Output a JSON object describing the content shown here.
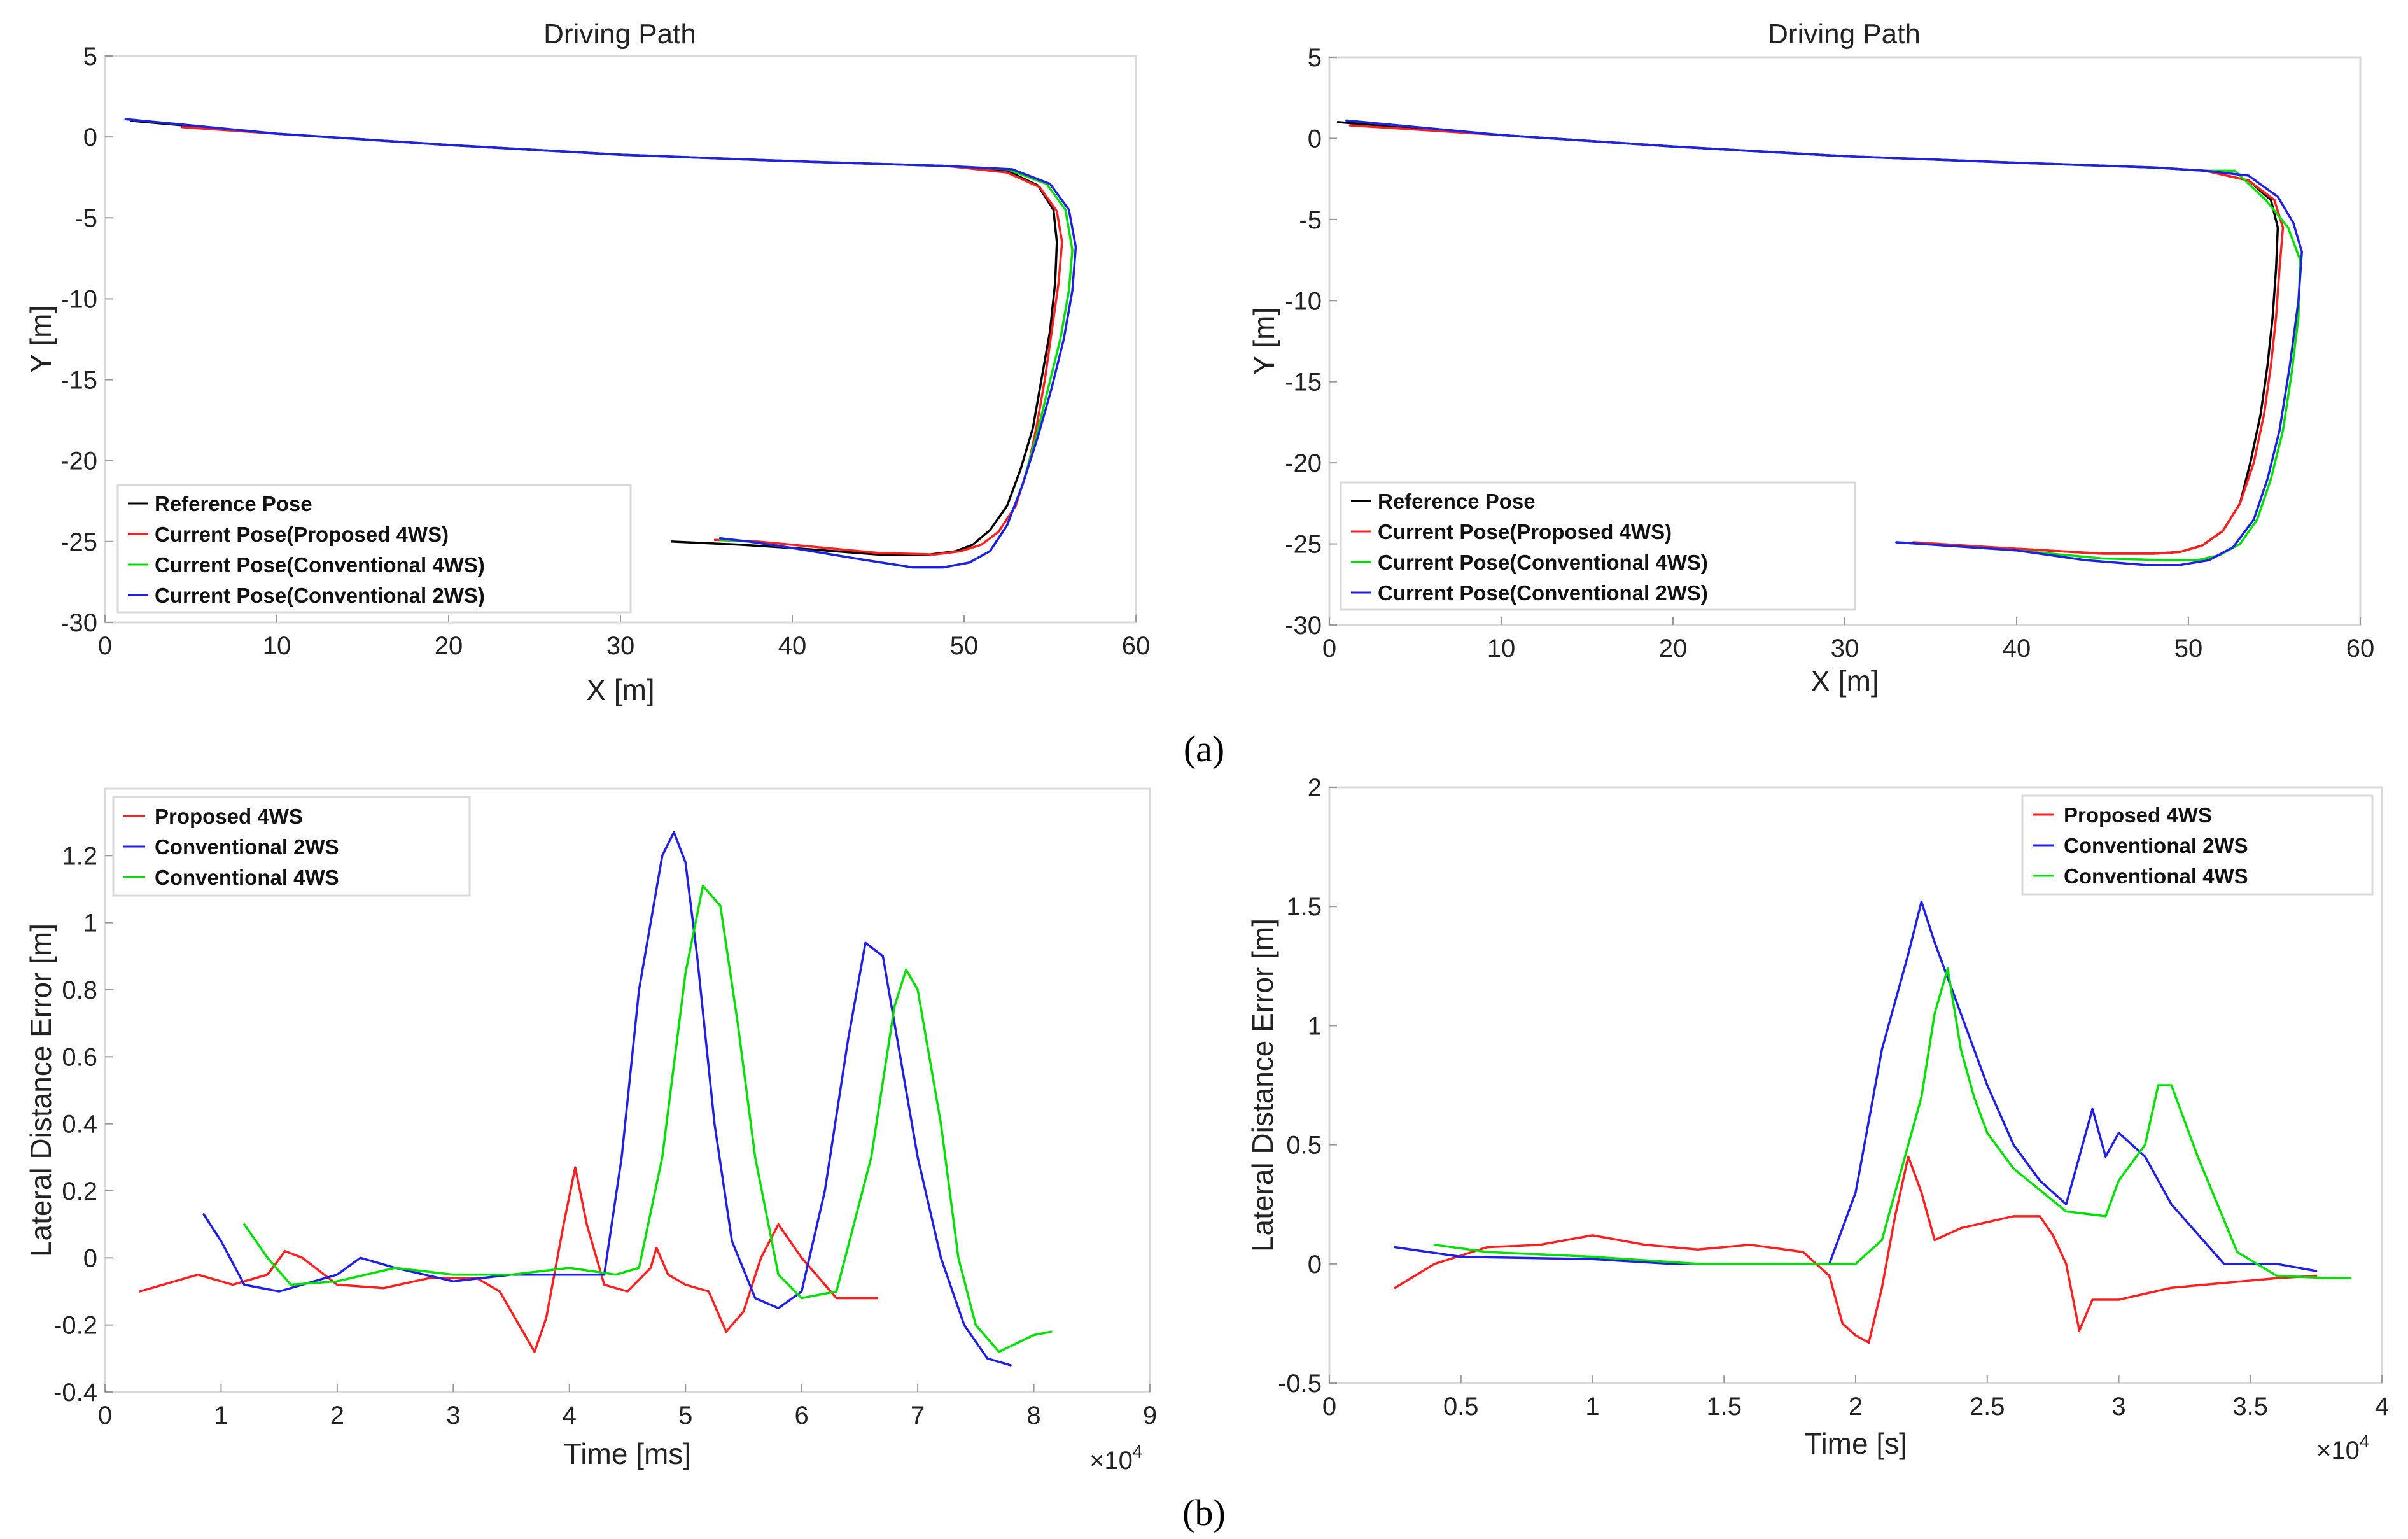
{
  "figure": {
    "label_a": "(a)",
    "label_b": "(b)"
  },
  "colors": {
    "reference": "#000000",
    "proposed": "#ff1f1f",
    "conv4ws": "#00e000",
    "conv2ws": "#1f1fe6"
  },
  "chart_data": [
    {
      "id": "path_left",
      "type": "line",
      "title": "Driving Path",
      "xlabel": "X [m]",
      "ylabel": "Y [m]",
      "xlim": [
        0,
        60
      ],
      "ylim": [
        -30,
        5
      ],
      "xticks": [
        0,
        10,
        20,
        30,
        40,
        50,
        60
      ],
      "yticks": [
        5,
        0,
        -5,
        -10,
        -15,
        -20,
        -25,
        -30
      ],
      "legend_position": "bottom-left",
      "series": [
        {
          "name": "Reference Pose",
          "color": "reference",
          "x": [
            1.5,
            10,
            20,
            30,
            40,
            49,
            52.5,
            54.3,
            55.2,
            55.4,
            55.3,
            55.0,
            54.5,
            54.0,
            53.3,
            52.5,
            51.5,
            50.5,
            49.5,
            48.0,
            45.0,
            40.0,
            37.0,
            33.0
          ],
          "y": [
            1.0,
            0.2,
            -0.5,
            -1.1,
            -1.5,
            -1.8,
            -2.1,
            -3.0,
            -4.5,
            -6.5,
            -9,
            -12,
            -15,
            -18,
            -20.5,
            -22.8,
            -24.3,
            -25.2,
            -25.6,
            -25.8,
            -25.8,
            -25.4,
            -25.2,
            -25.0
          ]
        },
        {
          "name": "Current Pose(Proposed 4WS)",
          "color": "proposed",
          "x": [
            4.5,
            10,
            20,
            30,
            40,
            49,
            52.5,
            54.4,
            55.4,
            55.7,
            55.5,
            55.1,
            54.7,
            54.2,
            53.7,
            53.0,
            52.0,
            51.0,
            49.8,
            48.3,
            45.0,
            41.0,
            38.0,
            35.5
          ],
          "y": [
            0.6,
            0.2,
            -0.5,
            -1.1,
            -1.5,
            -1.8,
            -2.2,
            -3.1,
            -4.6,
            -6.5,
            -9,
            -12,
            -15,
            -18,
            -20.5,
            -22.8,
            -24.4,
            -25.2,
            -25.6,
            -25.8,
            -25.7,
            -25.3,
            -25.0,
            -24.9
          ]
        },
        {
          "name": "Current Pose(Conventional 4WS)",
          "color": "conv4ws",
          "x": [
            1.2,
            10,
            20,
            30,
            40,
            49,
            52.5,
            54.8,
            55.9,
            56.3,
            56.1,
            55.6,
            54.9,
            54.2,
            53.4,
            52.5,
            51.5,
            50.3,
            48.8,
            47.0,
            44.0,
            40.0,
            37.5,
            35.8
          ],
          "y": [
            1.1,
            0.2,
            -0.5,
            -1.1,
            -1.5,
            -1.8,
            -2.0,
            -2.9,
            -4.5,
            -7.0,
            -9.5,
            -12.5,
            -15.5,
            -18.5,
            -21.5,
            -24.0,
            -25.6,
            -26.3,
            -26.6,
            -26.6,
            -26.1,
            -25.4,
            -25.0,
            -24.9
          ]
        },
        {
          "name": "Current Pose(Conventional 2WS)",
          "color": "conv2ws",
          "x": [
            1.2,
            10,
            20,
            30,
            40,
            49,
            52.8,
            55.0,
            56.1,
            56.5,
            56.3,
            55.8,
            55.1,
            54.3,
            53.4,
            52.5,
            51.5,
            50.3,
            48.8,
            47.0,
            44.0,
            40.0,
            37.5,
            35.8
          ],
          "y": [
            1.1,
            0.2,
            -0.5,
            -1.1,
            -1.5,
            -1.8,
            -2.0,
            -2.9,
            -4.5,
            -6.8,
            -9.5,
            -12.5,
            -15.5,
            -18.5,
            -21.5,
            -24.0,
            -25.6,
            -26.3,
            -26.6,
            -26.6,
            -26.1,
            -25.4,
            -25.0,
            -24.8
          ]
        }
      ]
    },
    {
      "id": "path_right",
      "type": "line",
      "title": "Driving Path",
      "xlabel": "X [m]",
      "ylabel": "Y [m]",
      "xlim": [
        0,
        60
      ],
      "ylim": [
        -30,
        5
      ],
      "xticks": [
        0,
        10,
        20,
        30,
        40,
        50,
        60
      ],
      "yticks": [
        5,
        0,
        -5,
        -10,
        -15,
        -20,
        -25,
        -30
      ],
      "legend_position": "bottom-left",
      "series": [
        {
          "name": "Reference Pose",
          "color": "reference",
          "x": [
            0.5,
            10,
            20,
            30,
            40,
            48,
            51,
            53.5,
            54.8,
            55.2,
            55.1,
            54.9,
            54.6,
            54.2,
            53.6,
            53.0,
            52.0,
            50.8,
            49.5,
            48.0,
            45.0,
            40.0,
            33.0
          ],
          "y": [
            1.0,
            0.2,
            -0.5,
            -1.1,
            -1.5,
            -1.8,
            -2.0,
            -2.6,
            -3.8,
            -5.5,
            -8,
            -11,
            -14,
            -17,
            -20,
            -22.5,
            -24.2,
            -25.1,
            -25.5,
            -25.6,
            -25.6,
            -25.3,
            -24.9
          ]
        },
        {
          "name": "Current Pose(Proposed 4WS)",
          "color": "proposed",
          "x": [
            1.2,
            10,
            20,
            30,
            40,
            48,
            51,
            53.5,
            55.0,
            55.5,
            55.3,
            55.1,
            54.8,
            54.4,
            53.8,
            53.0,
            52.0,
            50.8,
            49.5,
            48.0,
            45.0,
            40.0,
            34.0
          ],
          "y": [
            0.8,
            0.2,
            -0.5,
            -1.1,
            -1.5,
            -1.8,
            -2.0,
            -2.6,
            -3.8,
            -5.5,
            -8,
            -11,
            -14,
            -17,
            -20,
            -22.5,
            -24.2,
            -25.1,
            -25.5,
            -25.6,
            -25.6,
            -25.3,
            -24.9
          ]
        },
        {
          "name": "Current Pose(Conventional 4WS)",
          "color": "conv4ws",
          "x": [
            1.0,
            10,
            20,
            30,
            40,
            48,
            51,
            52.7,
            54.5,
            55.8,
            56.5,
            56.4,
            56.0,
            55.5,
            54.8,
            54.0,
            53.0,
            51.8,
            50.5,
            48.8,
            45.0,
            40.0,
            33.0
          ],
          "y": [
            1.1,
            0.2,
            -0.5,
            -1.1,
            -1.5,
            -1.8,
            -2.0,
            -2.0,
            -3.8,
            -5.5,
            -7.5,
            -11,
            -14.5,
            -18,
            -21,
            -23.5,
            -25.0,
            -25.7,
            -26.0,
            -26.0,
            -25.9,
            -25.4,
            -24.9
          ]
        },
        {
          "name": "Current Pose(Conventional 2WS)",
          "color": "conv2ws",
          "x": [
            1.0,
            10,
            20,
            30,
            40,
            48,
            51,
            53.5,
            55.2,
            56.1,
            56.6,
            56.4,
            55.9,
            55.3,
            54.6,
            53.8,
            52.6,
            51.2,
            49.5,
            47.5,
            44.0,
            40.0,
            33.0
          ],
          "y": [
            1.1,
            0.2,
            -0.5,
            -1.1,
            -1.5,
            -1.8,
            -2.0,
            -2.3,
            -3.6,
            -5.2,
            -7.0,
            -10,
            -14,
            -18,
            -21,
            -23.5,
            -25.2,
            -26.0,
            -26.3,
            -26.3,
            -26.0,
            -25.4,
            -24.9
          ]
        }
      ]
    },
    {
      "id": "error_left",
      "type": "line",
      "title": "",
      "xlabel": "Time [ms]",
      "ylabel": "Lateral Distance Error [m]",
      "x_multiplier_label": "×10",
      "x_multiplier_exp": "4",
      "xlim": [
        0,
        9
      ],
      "ylim": [
        -0.4,
        1.4
      ],
      "xticks": [
        0,
        1,
        2,
        3,
        4,
        5,
        6,
        7,
        8,
        9
      ],
      "yticks": [
        1.2,
        1,
        0.8,
        0.6,
        0.4,
        0.2,
        0,
        -0.2,
        -0.4
      ],
      "legend_position": "top-left",
      "series": [
        {
          "name": "Proposed 4WS",
          "color": "proposed",
          "x": [
            0.3,
            0.5,
            0.8,
            1.1,
            1.4,
            1.55,
            1.7,
            2.0,
            2.4,
            2.8,
            3.2,
            3.4,
            3.6,
            3.7,
            3.8,
            3.95,
            4.05,
            4.15,
            4.3,
            4.5,
            4.7,
            4.75,
            4.85,
            5.0,
            5.2,
            5.35,
            5.5,
            5.65,
            5.8,
            6.0,
            6.3,
            6.65
          ],
          "y": [
            -0.1,
            -0.08,
            -0.05,
            -0.08,
            -0.05,
            0.02,
            0.0,
            -0.08,
            -0.09,
            -0.06,
            -0.06,
            -0.1,
            -0.22,
            -0.28,
            -0.18,
            0.1,
            0.27,
            0.1,
            -0.08,
            -0.1,
            -0.03,
            0.03,
            -0.05,
            -0.08,
            -0.1,
            -0.22,
            -0.16,
            0.0,
            0.1,
            0.0,
            -0.12,
            -0.12
          ]
        },
        {
          "name": "Conventional 2WS",
          "color": "conv2ws",
          "x": [
            0.85,
            1.0,
            1.2,
            1.5,
            2.0,
            2.2,
            2.5,
            3.0,
            3.5,
            4.0,
            4.3,
            4.45,
            4.6,
            4.8,
            4.9,
            5.0,
            5.1,
            5.25,
            5.4,
            5.6,
            5.8,
            6.0,
            6.2,
            6.4,
            6.55,
            6.7,
            6.85,
            7.0,
            7.2,
            7.4,
            7.6,
            7.8
          ],
          "y": [
            0.13,
            0.05,
            -0.08,
            -0.1,
            -0.05,
            0.0,
            -0.03,
            -0.07,
            -0.05,
            -0.05,
            -0.05,
            0.3,
            0.8,
            1.2,
            1.27,
            1.18,
            0.9,
            0.4,
            0.05,
            -0.12,
            -0.15,
            -0.1,
            0.2,
            0.65,
            0.94,
            0.9,
            0.6,
            0.3,
            0.0,
            -0.2,
            -0.3,
            -0.32
          ]
        },
        {
          "name": "Conventional 4WS",
          "color": "conv4ws",
          "x": [
            1.2,
            1.4,
            1.6,
            2.0,
            2.5,
            3.0,
            3.5,
            4.0,
            4.4,
            4.6,
            4.8,
            5.0,
            5.15,
            5.3,
            5.45,
            5.6,
            5.8,
            6.0,
            6.3,
            6.6,
            6.8,
            6.9,
            7.0,
            7.2,
            7.35,
            7.5,
            7.7,
            8.0,
            8.15
          ],
          "y": [
            0.1,
            0.0,
            -0.08,
            -0.07,
            -0.03,
            -0.05,
            -0.05,
            -0.03,
            -0.05,
            -0.03,
            0.3,
            0.85,
            1.11,
            1.05,
            0.7,
            0.3,
            -0.05,
            -0.12,
            -0.1,
            0.3,
            0.75,
            0.86,
            0.8,
            0.4,
            0.0,
            -0.2,
            -0.28,
            -0.23,
            -0.22
          ]
        }
      ]
    },
    {
      "id": "error_right",
      "type": "line",
      "title": "",
      "xlabel": "Time [s]",
      "ylabel": "Lateral Distance Error [m]",
      "x_multiplier_label": "×10",
      "x_multiplier_exp": "4",
      "xlim": [
        0,
        4
      ],
      "ylim": [
        -0.5,
        2
      ],
      "xticks": [
        0,
        0.5,
        1,
        1.5,
        2,
        2.5,
        3,
        3.5,
        4
      ],
      "yticks": [
        2,
        1.5,
        1,
        0.5,
        0,
        -0.5
      ],
      "legend_position": "top-right",
      "series": [
        {
          "name": "Proposed 4WS",
          "color": "proposed",
          "x": [
            0.25,
            0.4,
            0.6,
            0.8,
            1.0,
            1.2,
            1.4,
            1.6,
            1.8,
            1.9,
            1.95,
            2.0,
            2.05,
            2.1,
            2.15,
            2.2,
            2.25,
            2.3,
            2.4,
            2.6,
            2.7,
            2.75,
            2.8,
            2.85,
            2.9,
            3.0,
            3.2,
            3.4,
            3.6,
            3.75
          ],
          "y": [
            -0.1,
            0.0,
            0.07,
            0.08,
            0.12,
            0.08,
            0.06,
            0.08,
            0.05,
            -0.05,
            -0.25,
            -0.3,
            -0.33,
            -0.1,
            0.2,
            0.45,
            0.3,
            0.1,
            0.15,
            0.2,
            0.2,
            0.12,
            0.0,
            -0.28,
            -0.15,
            -0.15,
            -0.1,
            -0.08,
            -0.06,
            -0.05
          ]
        },
        {
          "name": "Conventional 2WS",
          "color": "conv2ws",
          "x": [
            0.25,
            0.5,
            1.0,
            1.3,
            1.6,
            1.9,
            2.0,
            2.1,
            2.2,
            2.25,
            2.3,
            2.4,
            2.5,
            2.6,
            2.7,
            2.8,
            2.85,
            2.9,
            2.95,
            3.0,
            3.1,
            3.2,
            3.4,
            3.6,
            3.75
          ],
          "y": [
            0.07,
            0.03,
            0.02,
            0.0,
            0.0,
            0.0,
            0.3,
            0.9,
            1.3,
            1.52,
            1.35,
            1.05,
            0.75,
            0.5,
            0.35,
            0.25,
            0.45,
            0.65,
            0.45,
            0.55,
            0.45,
            0.25,
            0.0,
            0.0,
            -0.03
          ]
        },
        {
          "name": "Conventional 4WS",
          "color": "conv4ws",
          "x": [
            0.4,
            0.6,
            1.0,
            1.4,
            1.8,
            2.0,
            2.1,
            2.2,
            2.25,
            2.3,
            2.35,
            2.4,
            2.45,
            2.5,
            2.6,
            2.8,
            2.95,
            3.0,
            3.1,
            3.15,
            3.2,
            3.3,
            3.45,
            3.6,
            3.8,
            3.88
          ],
          "y": [
            0.08,
            0.05,
            0.03,
            0.0,
            0.0,
            0.0,
            0.1,
            0.5,
            0.7,
            1.05,
            1.24,
            0.9,
            0.7,
            0.55,
            0.4,
            0.22,
            0.2,
            0.35,
            0.5,
            0.75,
            0.75,
            0.45,
            0.05,
            -0.05,
            -0.06,
            -0.06
          ]
        }
      ]
    }
  ]
}
